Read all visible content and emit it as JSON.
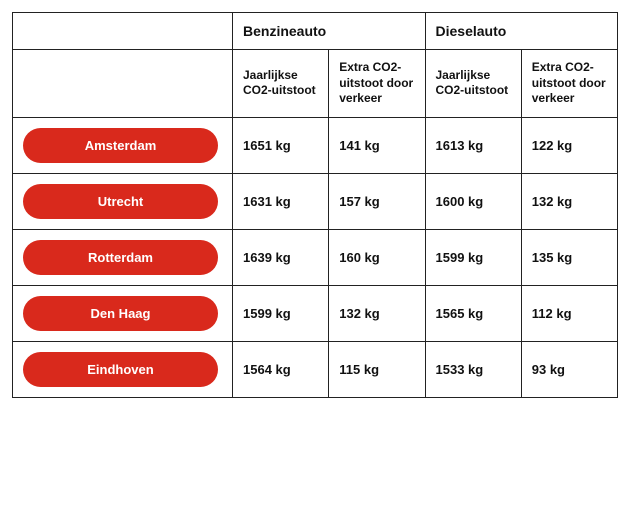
{
  "type": "table",
  "colors": {
    "border": "#222222",
    "pill_bg": "#d9291c",
    "pill_text": "#ffffff",
    "text": "#111111",
    "background": "#ffffff"
  },
  "typography": {
    "header_fontsize": 14,
    "subheader_fontsize": 12,
    "value_fontsize": 13,
    "pill_fontsize": 13,
    "weight_header": 700,
    "weight_value": 700
  },
  "groups": [
    {
      "label": "Benzineauto"
    },
    {
      "label": "Dieselauto"
    }
  ],
  "subheaders": [
    "Jaarlijkse CO2-uitstoot",
    "Extra CO2-uitstoot door verkeer",
    "Jaarlijkse CO2-uitstoot",
    "Extra CO2-uitstoot door verkeer"
  ],
  "rows": [
    {
      "city": "Amsterdam",
      "values": [
        "1651 kg",
        "141 kg",
        "1613 kg",
        "122 kg"
      ]
    },
    {
      "city": "Utrecht",
      "values": [
        "1631 kg",
        "157 kg",
        "1600 kg",
        "132 kg"
      ]
    },
    {
      "city": "Rotterdam",
      "values": [
        "1639 kg",
        "160 kg",
        "1599 kg",
        "135 kg"
      ]
    },
    {
      "city": "Den Haag",
      "values": [
        "1599 kg",
        "132 kg",
        "1565 kg",
        "112 kg"
      ]
    },
    {
      "city": "Eindhoven",
      "values": [
        "1564 kg",
        "115 kg",
        "1533 kg",
        "93 kg"
      ]
    }
  ]
}
